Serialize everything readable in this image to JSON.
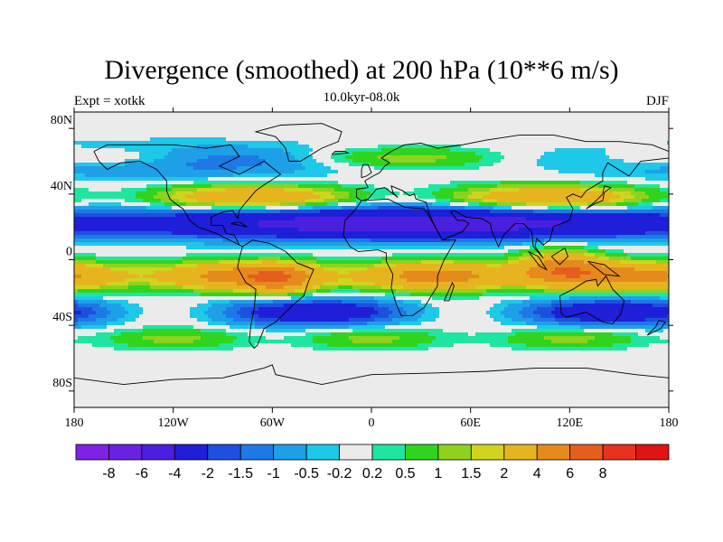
{
  "chart_data": {
    "type": "heatmap",
    "title": "Divergence (smoothed) at 200 hPa (10**6 m/s)",
    "subtitle": "10.0kyr-08.0k",
    "left_label": "Expt = xotkk",
    "right_label": "DJF",
    "x_range": [
      -180,
      180
    ],
    "y_range": [
      -90,
      90
    ],
    "x_ticks": [
      {
        "value": -180,
        "label": "180"
      },
      {
        "value": -120,
        "label": "120W"
      },
      {
        "value": -60,
        "label": "60W"
      },
      {
        "value": 0,
        "label": "0"
      },
      {
        "value": 60,
        "label": "60E"
      },
      {
        "value": 120,
        "label": "120E"
      },
      {
        "value": 180,
        "label": "180"
      }
    ],
    "y_ticks": [
      {
        "value": 80,
        "label": "80N"
      },
      {
        "value": 40,
        "label": "40N"
      },
      {
        "value": 0,
        "label": "0"
      },
      {
        "value": -40,
        "label": "40S"
      },
      {
        "value": -80,
        "label": "80S"
      }
    ],
    "colorbar": {
      "colors": [
        "#7f22e6",
        "#6a22e0",
        "#4b1fde",
        "#1f1ed8",
        "#1e50e0",
        "#1e78e6",
        "#1ea0e8",
        "#1ec8e8",
        "#ebebeb",
        "#1ee6a0",
        "#30d41e",
        "#8fd21e",
        "#d0d41e",
        "#e6b41e",
        "#e68a1e",
        "#e65e1e",
        "#e6321e",
        "#e01414"
      ],
      "labels": [
        "-8",
        "-6",
        "-4",
        "-2",
        "-1.5",
        "-1",
        "-0.5",
        "-0.2",
        "0.2",
        "0.5",
        "1",
        "1.5",
        "2",
        "4",
        "6",
        "8"
      ]
    }
  }
}
